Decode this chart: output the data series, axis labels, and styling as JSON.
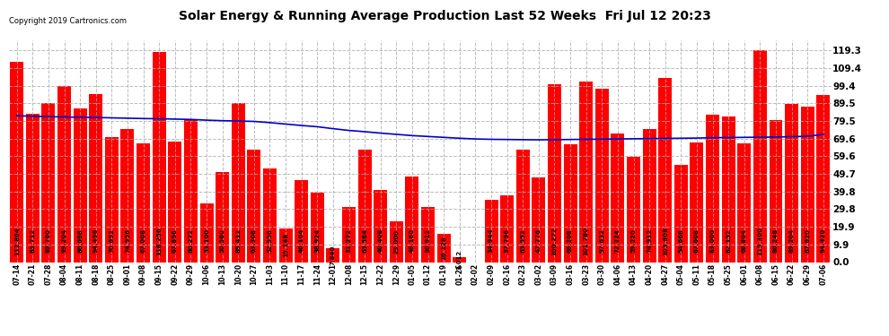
{
  "title": "Solar Energy & Running Average Production Last 52 Weeks  Fri Jul 12 20:23",
  "copyright": "Copyright 2019 Cartronics.com",
  "bar_color": "#ff0000",
  "avg_line_color": "#0000cc",
  "background_color": "#ffffff",
  "grid_color": "#aaaaaa",
  "yticks": [
    0.0,
    9.9,
    19.9,
    29.8,
    39.8,
    49.7,
    59.6,
    69.6,
    79.5,
    89.5,
    99.4,
    109.4,
    119.3
  ],
  "categories": [
    "07-14",
    "07-21",
    "07-28",
    "08-04",
    "08-11",
    "08-18",
    "08-25",
    "09-01",
    "09-08",
    "09-15",
    "09-22",
    "09-29",
    "10-06",
    "10-13",
    "10-20",
    "10-27",
    "11-03",
    "11-10",
    "11-17",
    "11-24",
    "12-01",
    "12-08",
    "12-15",
    "12-22",
    "12-29",
    "01-05",
    "01-12",
    "01-19",
    "01-26",
    "02-02",
    "02-09",
    "02-16",
    "02-23",
    "03-02",
    "03-09",
    "03-16",
    "03-23",
    "03-30",
    "04-06",
    "04-13",
    "04-20",
    "04-27",
    "05-04",
    "05-11",
    "05-18",
    "05-25",
    "06-01",
    "06-08",
    "06-15",
    "06-22",
    "06-29",
    "07-06"
  ],
  "weekly_values": [
    112.864,
    83.712,
    89.76,
    99.204,
    86.668,
    94.496,
    70.692,
    74.956,
    67.008,
    118.256,
    67.856,
    80.272,
    33.1,
    50.56,
    89.412,
    63.308,
    52.956,
    19.148,
    46.104,
    38.924,
    7.84,
    31.272,
    63.584,
    40.408,
    23.0,
    48.16,
    30.912,
    16.128,
    3.012,
    0.0,
    34.944,
    37.796,
    63.552,
    47.776,
    100.272,
    66.208,
    101.78,
    97.632,
    72.224,
    59.22,
    74.912,
    103.908,
    54.668,
    67.608,
    83.0,
    82.152,
    66.804,
    119.3,
    80.248,
    89.204,
    87.62,
    94.42
  ],
  "avg_values": [
    82.5,
    82.2,
    82.0,
    81.8,
    81.6,
    81.5,
    81.3,
    81.1,
    80.9,
    80.8,
    80.6,
    80.4,
    80.0,
    79.7,
    79.5,
    79.3,
    78.6,
    77.8,
    77.0,
    76.3,
    75.2,
    74.2,
    73.5,
    72.7,
    72.0,
    71.3,
    70.8,
    70.3,
    69.8,
    69.4,
    69.2,
    69.1,
    69.0,
    68.9,
    69.0,
    69.1,
    69.2,
    69.3,
    69.4,
    69.5,
    69.6,
    69.7,
    69.8,
    69.9,
    70.1,
    70.2,
    70.3,
    70.4,
    70.5,
    70.7,
    70.9,
    72.0
  ],
  "legend_avg_color": "#0000cd",
  "legend_weekly_color": "#ff0000",
  "ymax": 125.0,
  "label_fontsize": 5.0,
  "xtick_fontsize": 5.5,
  "ytick_fontsize": 7.5
}
